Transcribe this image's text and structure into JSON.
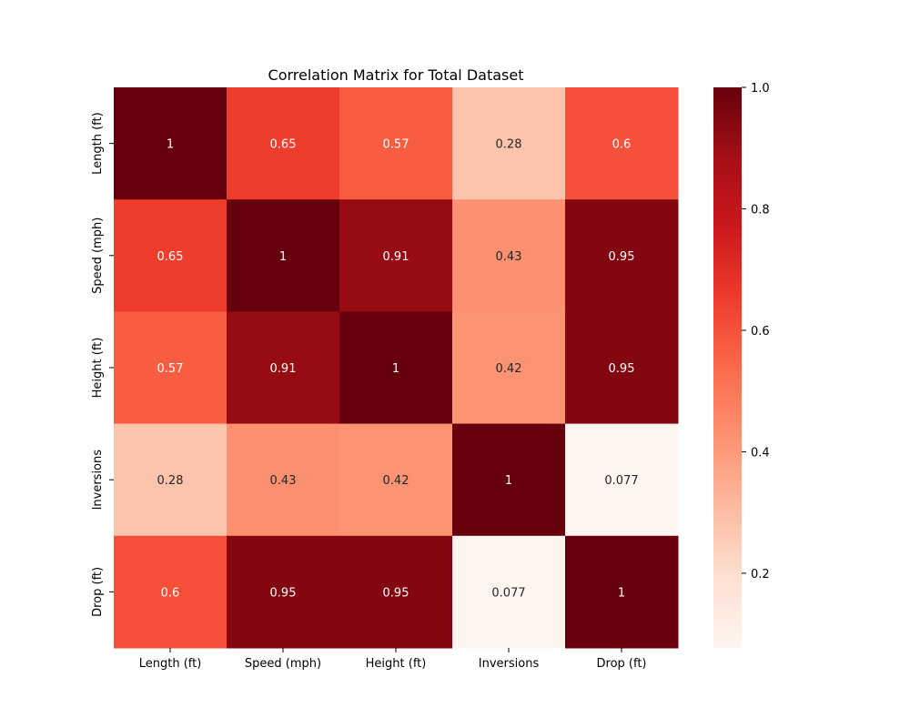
{
  "chart_data": {
    "type": "heatmap",
    "title": "Correlation Matrix for Total Dataset",
    "xlabel": "",
    "ylabel": "",
    "x_categories": [
      "Length (ft)",
      "Speed (mph)",
      "Height (ft)",
      "Inversions",
      "Drop (ft)"
    ],
    "y_categories": [
      "Length (ft)",
      "Speed (mph)",
      "Height (ft)",
      "Inversions",
      "Drop (ft)"
    ],
    "values": [
      [
        1,
        0.65,
        0.57,
        0.28,
        0.6
      ],
      [
        0.65,
        1,
        0.91,
        0.43,
        0.95
      ],
      [
        0.57,
        0.91,
        1,
        0.42,
        0.95
      ],
      [
        0.28,
        0.43,
        0.42,
        1,
        0.077
      ],
      [
        0.6,
        0.95,
        0.95,
        0.077,
        1
      ]
    ],
    "annotations": [
      [
        "1",
        "0.65",
        "0.57",
        "0.28",
        "0.6"
      ],
      [
        "0.65",
        "1",
        "0.91",
        "0.43",
        "0.95"
      ],
      [
        "0.57",
        "0.91",
        "1",
        "0.42",
        "0.95"
      ],
      [
        "0.28",
        "0.43",
        "0.42",
        "1",
        "0.077"
      ],
      [
        "0.6",
        "0.95",
        "0.95",
        "0.077",
        "1"
      ]
    ],
    "colormap": "Reds",
    "colorbar": {
      "range": [
        0.077,
        1.0
      ],
      "ticks": [
        0.2,
        0.4,
        0.6,
        0.8,
        1.0
      ],
      "tick_labels": [
        "0.2",
        "0.4",
        "0.6",
        "0.8",
        "1.0"
      ]
    },
    "grid": false
  }
}
